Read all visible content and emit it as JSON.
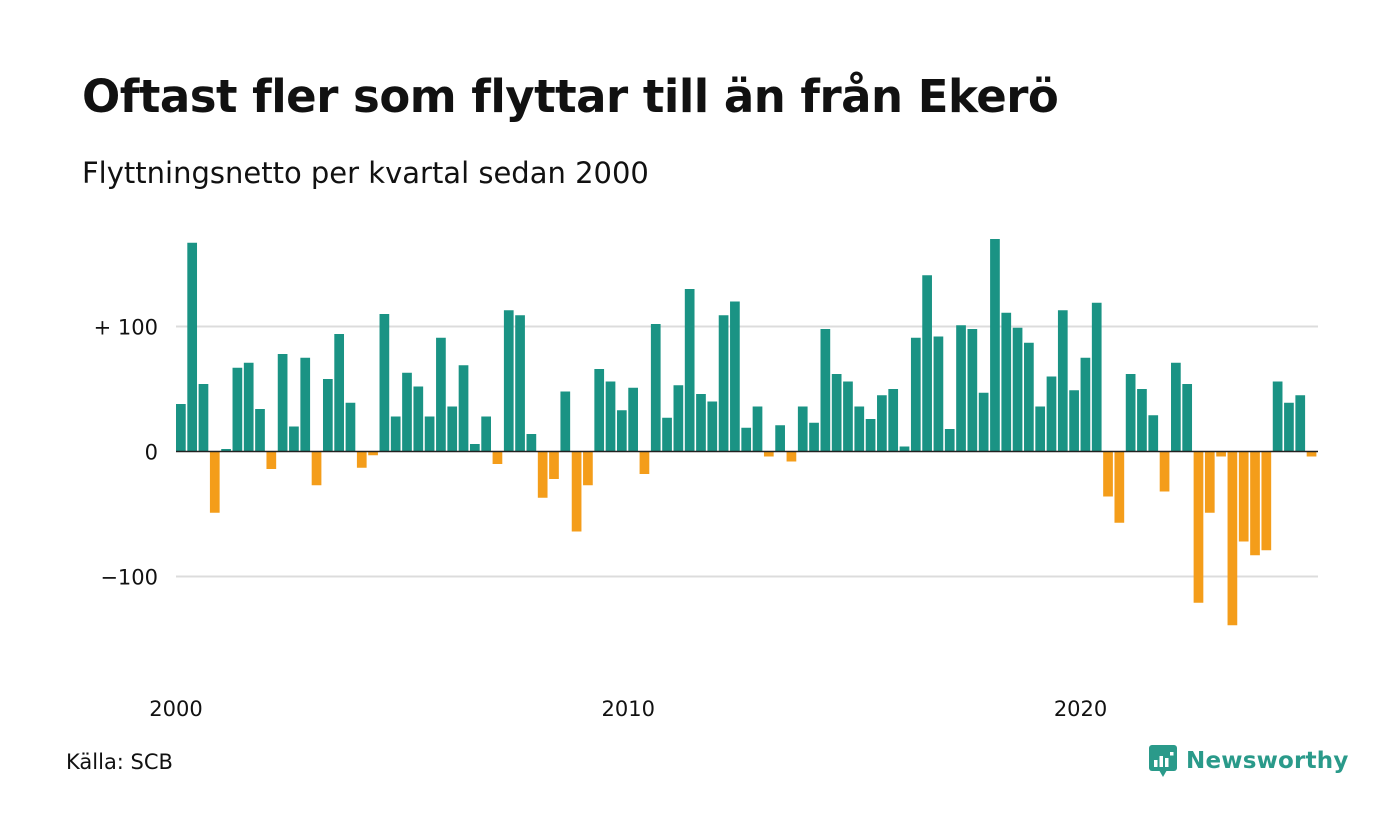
{
  "title": "Oftast fler som flyttar till än från Ekerö",
  "subtitle": "Flyttningsnetto per kvartal sedan 2000",
  "source": "Källa: SCB",
  "brand": "Newsworthy",
  "colors": {
    "positive": "#1a9384",
    "negative": "#f49d1a",
    "grid": "#dcdcdc",
    "brand": "#2a9a8a"
  },
  "chart_data": {
    "type": "bar",
    "ylim": [
      -180,
      175
    ],
    "yticks": [
      {
        "value": 100,
        "label": "+ 100"
      },
      {
        "value": 0,
        "label": "0"
      },
      {
        "value": -100,
        "label": "−100"
      }
    ],
    "xticks": [
      {
        "index": 0,
        "label": "2000"
      },
      {
        "index": 40,
        "label": "2010"
      },
      {
        "index": 80,
        "label": "2020"
      }
    ],
    "grid": true,
    "legend": false,
    "values": [
      38,
      167,
      54,
      -49,
      2,
      67,
      71,
      34,
      -14,
      78,
      20,
      75,
      -27,
      58,
      94,
      39,
      -13,
      -3,
      110,
      28,
      63,
      52,
      28,
      91,
      36,
      69,
      6,
      28,
      -10,
      113,
      109,
      14,
      -37,
      -22,
      48,
      -64,
      -27,
      66,
      56,
      33,
      51,
      -18,
      102,
      27,
      53,
      130,
      46,
      40,
      109,
      120,
      19,
      36,
      -4,
      21,
      -8,
      36,
      23,
      98,
      62,
      56,
      36,
      26,
      45,
      50,
      4,
      91,
      141,
      92,
      18,
      101,
      98,
      47,
      170,
      111,
      99,
      87,
      36,
      60,
      113,
      49,
      75,
      119,
      -36,
      -57,
      62,
      50,
      29,
      -32,
      71,
      54,
      -121,
      -49,
      -4,
      -139,
      -72,
      -83,
      -79,
      56,
      39,
      45,
      -4
    ]
  }
}
